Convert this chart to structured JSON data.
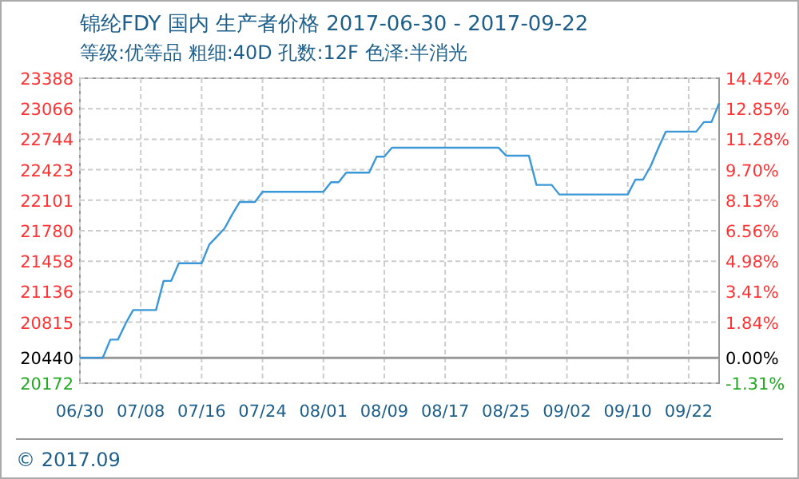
{
  "chart_data": {
    "type": "line",
    "title": "锦纶FDY 国内 生产者价格 2017-06-30 - 2017-09-22",
    "subtitle": "等级:优等品 粗细:40D 孔数:12F 色泽:半消光",
    "annotations": [
      "© 2017.09"
    ],
    "categories": [
      "06/30",
      null,
      null,
      null,
      null,
      null,
      null,
      null,
      "07/08",
      null,
      null,
      null,
      null,
      null,
      null,
      null,
      "07/16",
      null,
      null,
      null,
      null,
      null,
      null,
      null,
      "07/24",
      null,
      null,
      null,
      null,
      null,
      null,
      null,
      "08/01",
      null,
      null,
      null,
      null,
      null,
      null,
      null,
      "08/09",
      null,
      null,
      null,
      null,
      null,
      null,
      null,
      "08/17",
      null,
      null,
      null,
      null,
      null,
      null,
      null,
      "08/25",
      null,
      null,
      null,
      null,
      null,
      null,
      null,
      "09/02",
      null,
      null,
      null,
      null,
      null,
      null,
      null,
      "09/10",
      null,
      null,
      null,
      null,
      null,
      null,
      null,
      "09/22",
      null,
      null,
      null,
      null
    ],
    "series": [
      {
        "color": "#3a98d8",
        "values": [
          20440,
          20440,
          20440,
          20440,
          20632,
          20632,
          20800,
          20943,
          20943,
          20943,
          20943,
          21251,
          21251,
          21437,
          21437,
          21437,
          21437,
          21634,
          21718,
          21803,
          21950,
          22083,
          22083,
          22083,
          22191,
          22191,
          22191,
          22191,
          22191,
          22191,
          22191,
          22191,
          22191,
          22292,
          22292,
          22393,
          22393,
          22393,
          22393,
          22561,
          22561,
          22656,
          22656,
          22656,
          22656,
          22656,
          22656,
          22656,
          22656,
          22656,
          22656,
          22656,
          22656,
          22656,
          22656,
          22656,
          22572,
          22572,
          22572,
          22572,
          22263,
          22263,
          22263,
          22162,
          22162,
          22162,
          22162,
          22162,
          22162,
          22162,
          22162,
          22162,
          22162,
          22319,
          22319,
          22460,
          22650,
          22825,
          22825,
          22825,
          22825,
          22825,
          22926,
          22926,
          23123
        ]
      }
    ],
    "ylim": [
      20172,
      23388
    ],
    "yticks": [
      20172,
      20440,
      20815,
      21136,
      21458,
      21780,
      22101,
      22423,
      22744,
      23066,
      23388
    ],
    "y2lim": [
      -1.31,
      14.42
    ],
    "y2ticks": [
      {
        "value": -1.31,
        "label": "-1.31%"
      },
      {
        "value": 0,
        "label": "0.00%"
      },
      {
        "value": 1.84,
        "label": "1.84%"
      },
      {
        "value": 3.41,
        "label": "3.41%"
      },
      {
        "value": 4.98,
        "label": "4.98%"
      },
      {
        "value": 6.56,
        "label": "6.56%"
      },
      {
        "value": 8.13,
        "label": "8.13%"
      },
      {
        "value": 9.7,
        "label": "9.70%"
      },
      {
        "value": 11.28,
        "label": "11.28%"
      },
      {
        "value": 12.85,
        "label": "12.85%"
      },
      {
        "value": 14.42,
        "label": "14.42%"
      }
    ],
    "ref_lines": [
      {
        "axis": "y",
        "value": 20440,
        "color": "#999999"
      }
    ],
    "grid": true
  }
}
